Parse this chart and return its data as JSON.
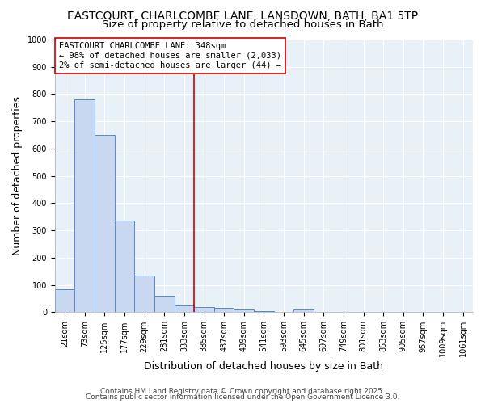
{
  "title_line1": "EASTCOURT, CHARLCOMBE LANE, LANSDOWN, BATH, BA1 5TP",
  "title_line2": "Size of property relative to detached houses in Bath",
  "xlabel": "Distribution of detached houses by size in Bath",
  "ylabel": "Number of detached properties",
  "bin_labels": [
    "21sqm",
    "73sqm",
    "125sqm",
    "177sqm",
    "229sqm",
    "281sqm",
    "333sqm",
    "385sqm",
    "437sqm",
    "489sqm",
    "541sqm",
    "593sqm",
    "645sqm",
    "697sqm",
    "749sqm",
    "801sqm",
    "853sqm",
    "905sqm",
    "957sqm",
    "1009sqm",
    "1061sqm"
  ],
  "bar_heights": [
    85,
    780,
    650,
    335,
    135,
    60,
    25,
    20,
    15,
    10,
    5,
    0,
    10,
    0,
    0,
    0,
    0,
    0,
    0,
    0,
    0
  ],
  "bar_color": "#c8d8f0",
  "bar_edge_color": "#5588cc",
  "vline_x": 6.5,
  "vline_color": "#cc0000",
  "annotation_text": "EASTCOURT CHARLCOMBE LANE: 348sqm\n← 98% of detached houses are smaller (2,033)\n2% of semi-detached houses are larger (44) →",
  "annotation_box_facecolor": "white",
  "annotation_box_edgecolor": "#cc0000",
  "ylim": [
    0,
    1000
  ],
  "yticks": [
    0,
    100,
    200,
    300,
    400,
    500,
    600,
    700,
    800,
    900,
    1000
  ],
  "plot_bg_color": "#e8f0f8",
  "fig_bg_color": "#ffffff",
  "grid_color": "#ffffff",
  "footer1": "Contains HM Land Registry data © Crown copyright and database right 2025.",
  "footer2": "Contains public sector information licensed under the Open Government Licence 3.0.",
  "title_fontsize": 10,
  "subtitle_fontsize": 9.5,
  "axis_label_fontsize": 9,
  "tick_fontsize": 7,
  "annotation_fontsize": 7.5,
  "footer_fontsize": 6.5
}
